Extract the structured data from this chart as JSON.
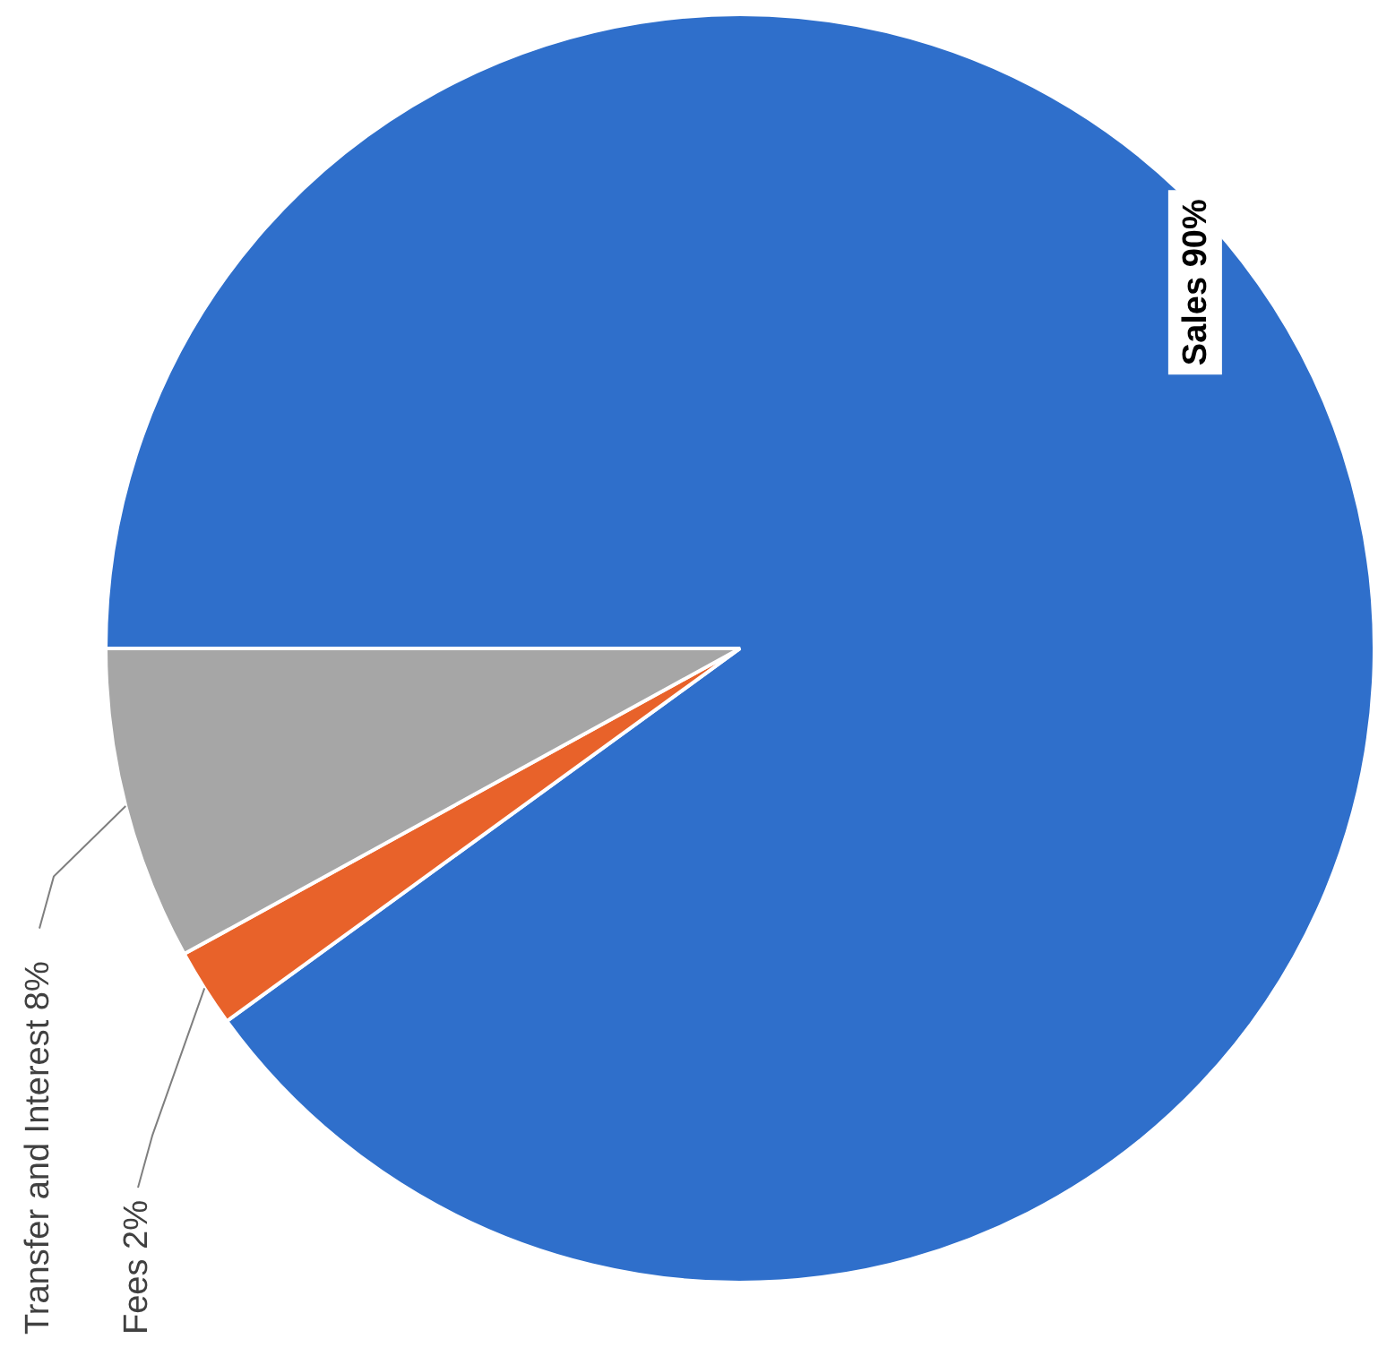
{
  "chart_data": {
    "type": "pie",
    "categories": [
      "Sales",
      "Fees",
      "Transfer and Interest"
    ],
    "values": [
      90,
      2,
      8
    ],
    "colors": [
      "#2f6fcb",
      "#e8622a",
      "#a6a6a6"
    ],
    "value_labels": [
      "90%",
      "2%",
      "8%"
    ],
    "legend": false
  }
}
